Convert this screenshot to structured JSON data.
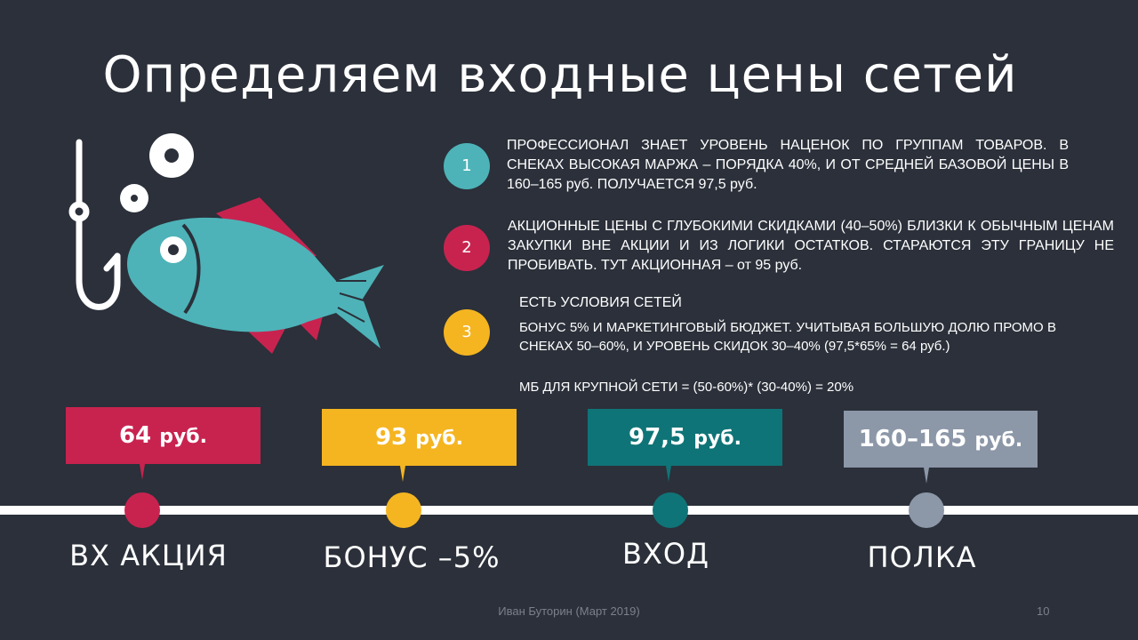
{
  "title": "Определяем входные цены сетей",
  "colors": {
    "background": "#2b303a",
    "teal_light": "#4db3b8",
    "crimson": "#c8234f",
    "amber": "#f5b521",
    "teal_dark": "#0f7477",
    "slate": "#8c97a8"
  },
  "points": [
    {
      "number": "1",
      "text": "ПРОФЕССИОНАЛ ЗНАЕТ УРОВЕНЬ НАЦЕНОК ПО ГРУППАМ ТОВАРОВ. В СНЕКАХ ВЫСОКАЯ МАРЖА – ПОРЯДКА 40%, И ОТ СРЕДНЕЙ БАЗОВОЙ ЦЕНЫ В 160–165 руб. ПОЛУЧАЕТСЯ 97,5 руб."
    },
    {
      "number": "2",
      "text": "АКЦИОННЫЕ ЦЕНЫ С ГЛУБОКИМИ СКИДКАМИ (40–50%) БЛИЗКИ К ОБЫЧНЫМ ЦЕНАМ ЗАКУПКИ ВНЕ АКЦИИ И ИЗ ЛОГИКИ ОСТАТКОВ. СТАРАЮТСЯ ЭТУ ГРАНИЦУ НЕ ПРОБИВАТЬ. ТУТ АКЦИОННАЯ – от 95 руб."
    },
    {
      "number": "3",
      "heading": "ЕСТЬ УСЛОВИЯ СЕТЕЙ",
      "text": "БОНУС 5% И МАРКЕТИНГОВЫЙ БЮДЖЕТ. УЧИТЫВАЯ БОЛЬШУЮ ДОЛЮ ПРОМО В СНЕКАХ 50–60%, И УРОВЕНЬ СКИДОК 30–40% (97,5*65% = 64 руб.)",
      "formula": "МБ ДЛЯ КРУПНОЙ СЕТИ = (50-60%)* (30-40%) = 20%"
    }
  ],
  "prices": [
    {
      "value": "64",
      "unit": "руб.",
      "label": "ВХ АКЦИЯ"
    },
    {
      "value": "93",
      "unit": "руб.",
      "label": "БОНУС –5%"
    },
    {
      "value": "97,5",
      "unit": "руб.",
      "label": "ВХОД"
    },
    {
      "value": "160–165",
      "unit": "руб.",
      "label": "ПОЛКА"
    }
  ],
  "footer": {
    "author": "Иван Буторин (Март 2019)",
    "page": "10"
  }
}
